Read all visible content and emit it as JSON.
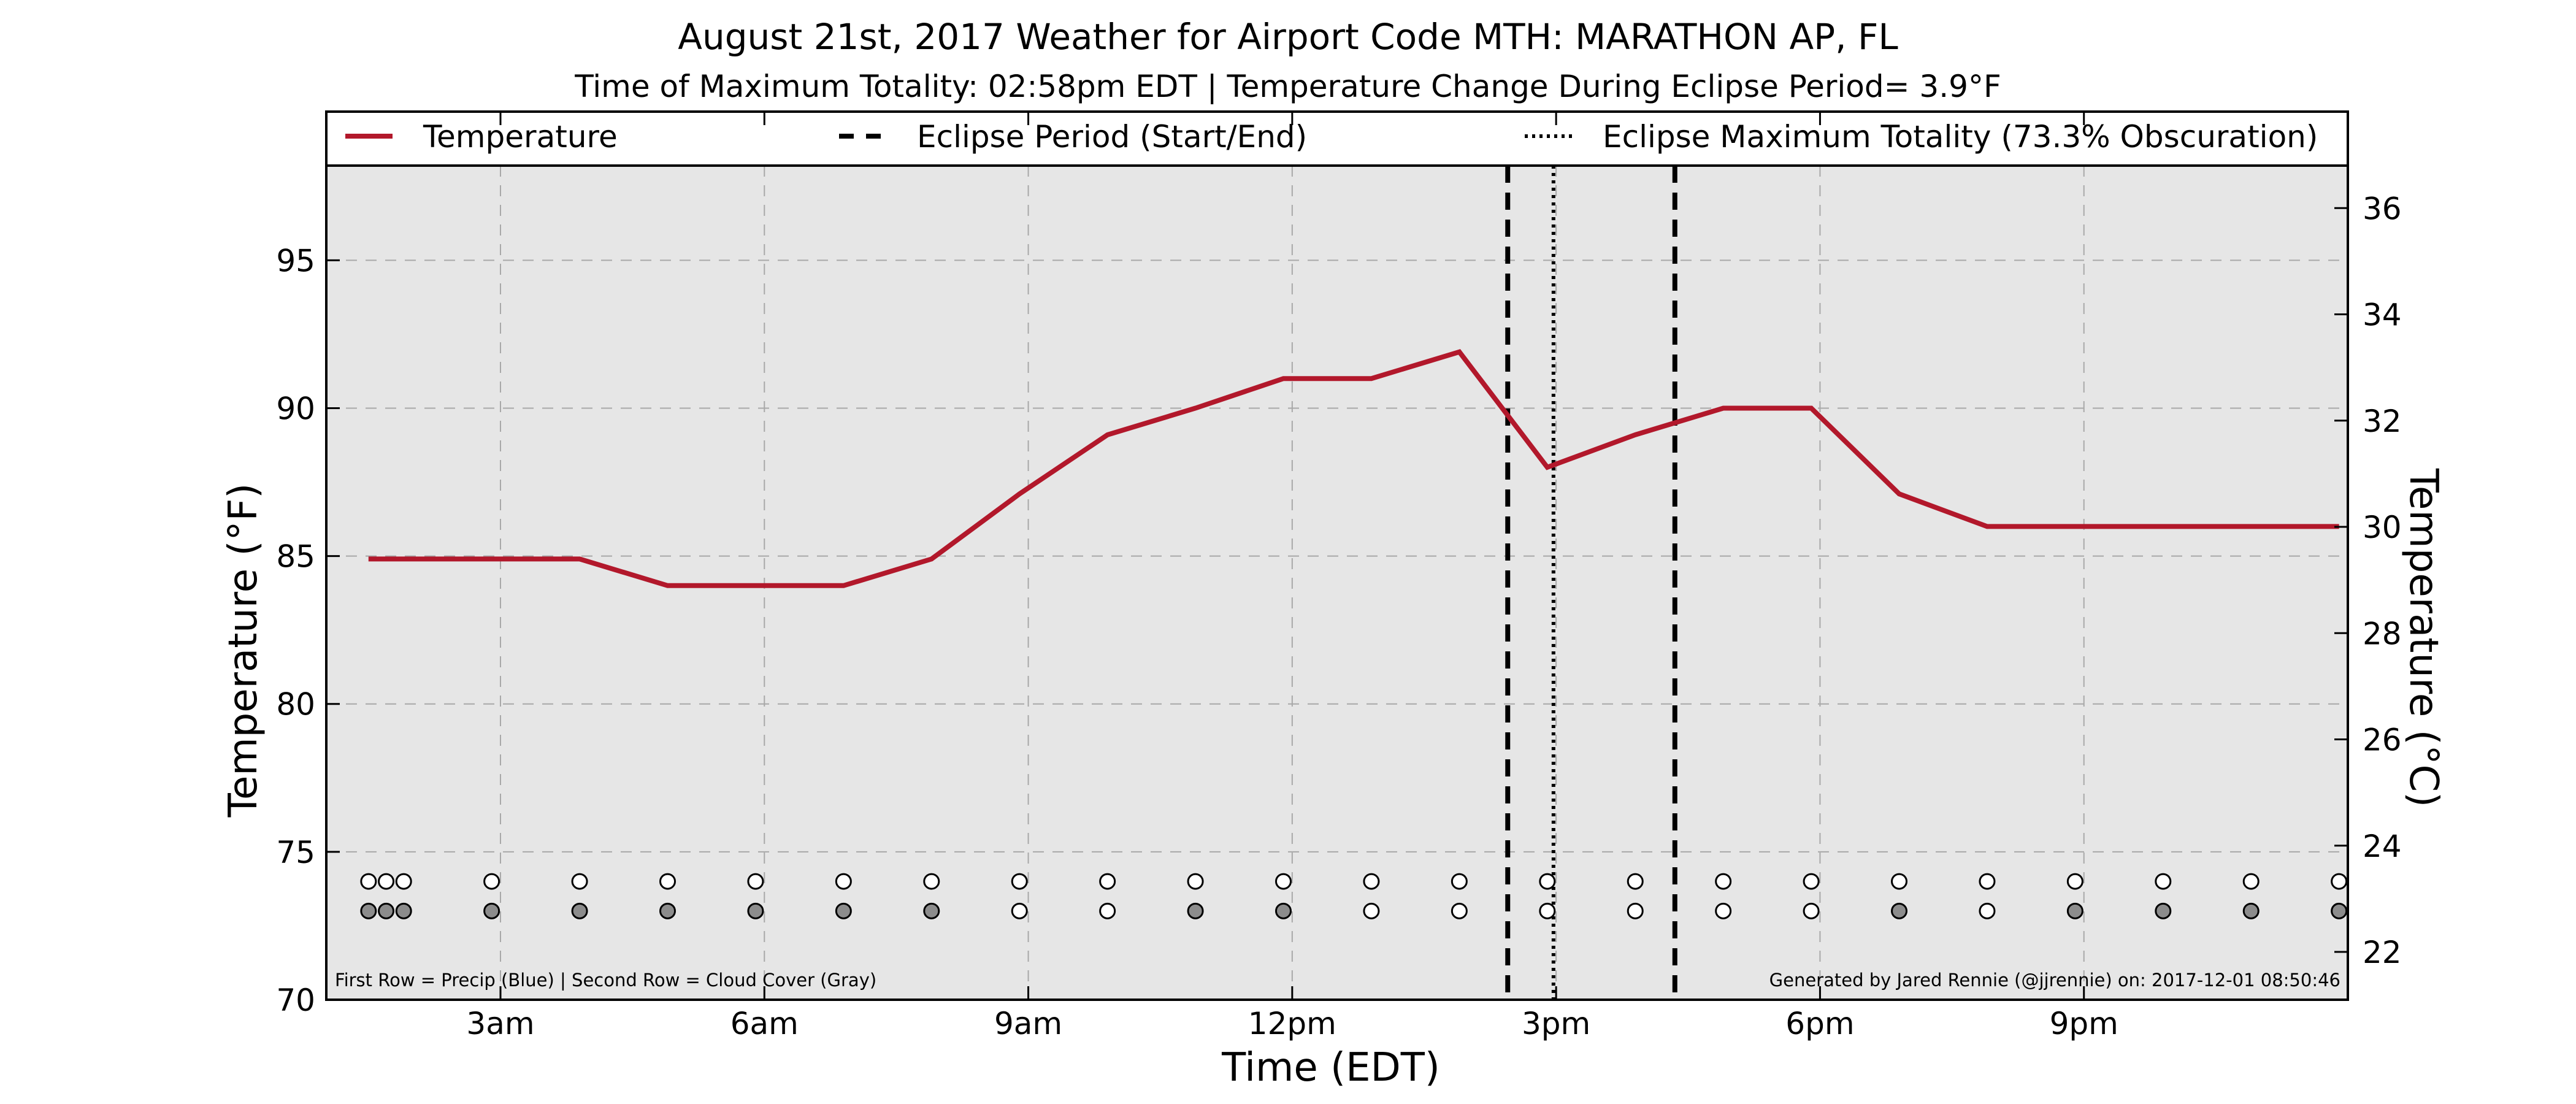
{
  "chart_data": {
    "type": "line",
    "title": "August 21st, 2017 Weather for Airport Code MTH: MARATHON AP, FL",
    "subtitle": "Time of Maximum Totality: 02:58pm EDT | Temperature Change During Eclipse Period= 3.9°F",
    "xlabel": "Time (EDT)",
    "ylabel": "Temperature (°F)",
    "ylabel_right": "Temperature (°C)",
    "xlim_hours": [
      1.02,
      24.0
    ],
    "ylim": [
      70,
      98.2
    ],
    "ylim_right": [
      21.1,
      36.8
    ],
    "x_ticks": [
      {
        "hour": 3,
        "label": "3am"
      },
      {
        "hour": 6,
        "label": "6am"
      },
      {
        "hour": 9,
        "label": "9am"
      },
      {
        "hour": 12,
        "label": "12pm"
      },
      {
        "hour": 15,
        "label": "3pm"
      },
      {
        "hour": 18,
        "label": "6pm"
      },
      {
        "hour": 21,
        "label": "9pm"
      }
    ],
    "y_ticks": [
      70,
      75,
      80,
      85,
      90,
      95
    ],
    "y_ticks_right": [
      22,
      24,
      26,
      28,
      30,
      32,
      34,
      36
    ],
    "grid": true,
    "legend_position": "top",
    "legend": [
      {
        "label": "Temperature",
        "style": "solid",
        "color": "#b2182b"
      },
      {
        "label": "Eclipse Period (Start/End)",
        "style": "dashed",
        "color": "#000000"
      },
      {
        "label": "Eclipse Maximum Totality (73.3% Obscuration)",
        "style": "dotted",
        "color": "#000000"
      }
    ],
    "series": [
      {
        "name": "Temperature",
        "color": "#b2182b",
        "x_hours": [
          1.5,
          1.7,
          1.9,
          2.9,
          3.9,
          4.9,
          5.9,
          6.9,
          7.9,
          8.9,
          9.9,
          10.9,
          11.9,
          12.9,
          13.9,
          14.9,
          15.9,
          16.9,
          17.9,
          18.9,
          19.9,
          20.9,
          21.9,
          22.9,
          23.9
        ],
        "values": [
          84.9,
          84.9,
          84.9,
          84.9,
          84.9,
          84.0,
          84.0,
          84.0,
          84.9,
          87.1,
          89.1,
          90.0,
          91.0,
          91.0,
          91.9,
          88.0,
          89.1,
          90.0,
          90.0,
          87.1,
          86.0,
          86.0,
          86.0,
          86.0,
          86.0
        ]
      }
    ],
    "eclipse": {
      "start_hour": 14.45,
      "max_hour": 14.97,
      "end_hour": 16.35
    },
    "markers": {
      "precip_row_value": 74.0,
      "cloud_row_value": 73.0,
      "x_hours": [
        1.5,
        1.7,
        1.9,
        2.9,
        3.9,
        4.9,
        5.9,
        6.9,
        7.9,
        8.9,
        9.9,
        10.9,
        11.9,
        12.9,
        13.9,
        14.9,
        15.9,
        16.9,
        17.9,
        18.9,
        19.9,
        20.9,
        21.9,
        22.9,
        23.9
      ],
      "precip": [
        0,
        0,
        0,
        0,
        0,
        0,
        0,
        0,
        0,
        0,
        0,
        0,
        0,
        0,
        0,
        0,
        0,
        0,
        0,
        0,
        0,
        0,
        0,
        0,
        0
      ],
      "cloud": [
        1,
        1,
        1,
        1,
        1,
        1,
        1,
        1,
        1,
        0,
        0,
        1,
        1,
        0,
        0,
        0,
        0,
        0,
        0,
        1,
        0,
        1,
        1,
        1,
        1
      ],
      "precip_color": "#ffffff",
      "cloud_filled_color": "#8c8c8c",
      "empty_color": "#ffffff"
    },
    "notes": {
      "left": "First Row = Precip (Blue) | Second Row = Cloud Cover (Gray)",
      "right": "Generated by Jared Rennie (@jjrennie) on: 2017-12-01 08:50:46"
    },
    "plot_background": "#e6e6e6"
  }
}
